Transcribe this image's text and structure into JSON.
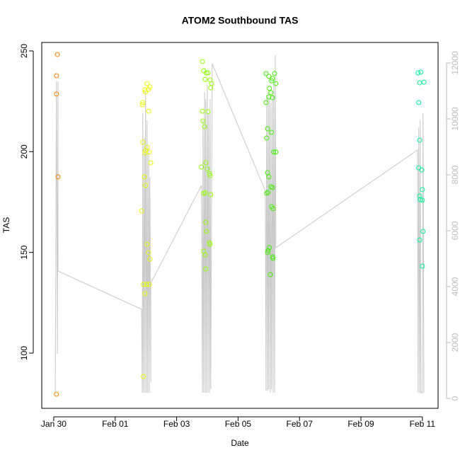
{
  "chart_data": {
    "type": "scatter",
    "title": "ATOM2 Southbound TAS",
    "x_label": "Date",
    "y_label": "TAS",
    "xlim": [
      -0.39,
      12.51
    ],
    "ylim": [
      72.6,
      254.2
    ],
    "y2lim": [
      -354,
      12734
    ],
    "xticks": [
      {
        "value": 0,
        "label": "Jan 30"
      },
      {
        "value": 2,
        "label": "Feb 01"
      },
      {
        "value": 4,
        "label": "Feb 03"
      },
      {
        "value": 6,
        "label": "Feb 05"
      },
      {
        "value": 8,
        "label": "Feb 07"
      },
      {
        "value": 10,
        "label": "Feb 09"
      },
      {
        "value": 12,
        "label": "Feb 11"
      }
    ],
    "yticks": [
      100,
      150,
      200,
      250
    ],
    "y2ticks": [
      0,
      2000,
      4000,
      6000,
      8000,
      10000,
      12000
    ],
    "y2_color": "#bbbbbb",
    "series": [
      {
        "type": "line",
        "axis": "y2",
        "color": "#c8c8c8",
        "x": [
          0.05,
          0.09,
          0.12,
          0.14,
          0.14,
          2.86,
          2.88,
          2.9,
          2.92,
          2.95,
          2.97,
          2.99,
          3.02,
          3.04,
          3.06,
          3.09,
          3.11,
          3.13,
          3.16,
          3.16,
          4.81,
          4.84,
          4.86,
          4.88,
          4.91,
          4.93,
          4.95,
          4.97,
          5.0,
          5.02,
          5.04,
          5.07,
          5.09,
          5.11,
          5.16,
          6.89,
          6.91,
          6.93,
          6.96,
          6.98,
          7.0,
          7.02,
          7.05,
          7.07,
          7.09,
          7.12,
          7.14,
          7.16,
          7.19,
          7.21,
          7.23,
          11.84,
          11.86,
          11.88,
          11.91,
          11.93,
          11.95,
          12.0,
          12.02,
          12.05
        ],
        "values": [
          203,
          11342,
          1595,
          11342,
          4557,
          3190,
          203,
          10200,
          203,
          9316,
          203,
          10962,
          203,
          9949,
          203,
          8937,
          203,
          7924,
          582,
          4127,
          7620,
          203,
          9949,
          203,
          10962,
          203,
          10709,
          203,
          11215,
          203,
          10203,
          203,
          10709,
          329,
          11975,
          7418,
          278,
          10835,
          278,
          10962,
          329,
          10709,
          203,
          10582,
          329,
          10835,
          203,
          11215,
          203,
          12278,
          5392,
          8886,
          203,
          9696,
          203,
          9949,
          203,
          203,
          10203,
          203
        ]
      },
      {
        "type": "scatter",
        "color": "#ff8000",
        "x": [
          0.12,
          0.09,
          0.09,
          0.14,
          0.09
        ],
        "values": [
          248.2,
          237.7,
          228.6,
          187.5,
          79.6
        ]
      },
      {
        "type": "scatter",
        "color": "#e8ff00",
        "x": [
          2.88,
          2.9,
          2.97,
          3.04,
          3.09,
          3.13,
          2.99,
          3.09,
          2.9,
          2.99,
          3.11,
          3.04,
          3.16,
          2.97,
          2.95,
          2.99,
          2.86,
          3.04,
          3.09,
          3.13,
          2.92,
          3.02,
          3.11,
          2.97,
          2.92
        ],
        "values": [
          223.3,
          224.4,
          230.7,
          233.8,
          231.0,
          232.1,
          229.6,
          220.1,
          204.7,
          200.5,
          199.8,
          202.2,
          194.5,
          199.4,
          187.5,
          183.3,
          170.6,
          154.1,
          149.9,
          146.7,
          134.1,
          134.1,
          134.1,
          129.5,
          88.4
        ]
      },
      {
        "type": "scatter",
        "color": "#90ff00",
        "x": [
          4.84,
          4.88,
          4.97,
          5.02,
          4.93,
          5.09,
          5.14,
          5.11,
          4.84,
          5.02,
          4.86,
          4.91,
          4.81,
          4.95,
          5.0,
          4.93,
          4.88,
          5.07,
          5.09,
          5.11,
          4.95,
          4.97,
          4.88,
          4.93,
          5.07,
          5.09,
          4.95
        ],
        "values": [
          244.7,
          240.2,
          239.1,
          239.1,
          235.9,
          235.6,
          233.8,
          231.7,
          220.1,
          219.8,
          215.2,
          212.4,
          192.4,
          194.5,
          191.4,
          179.6,
          179.3,
          189.1,
          188.1,
          178.7,
          165.0,
          160.4,
          150.6,
          148.8,
          154.8,
          154.1,
          141.8
        ]
      },
      {
        "type": "scatter",
        "color": "#40f000",
        "x": [
          6.91,
          7.0,
          7.12,
          7.19,
          7.09,
          7.23,
          7.02,
          7.07,
          7.0,
          7.12,
          6.91,
          6.96,
          7.09,
          6.93,
          7.16,
          7.23,
          6.96,
          7.0,
          7.07,
          6.98,
          7.12,
          6.93,
          7.09,
          7.14,
          6.98,
          6.96,
          7.02,
          7.12,
          7.14,
          7.05
        ],
        "values": [
          238.8,
          237.4,
          236.3,
          238.8,
          235.2,
          233.8,
          231.4,
          229.3,
          227.2,
          226.8,
          224.4,
          211.4,
          209.6,
          206.8,
          199.8,
          199.8,
          189.6,
          187.5,
          182.6,
          179.8,
          182.2,
          179.4,
          172.7,
          171.7,
          150.9,
          149.9,
          152.4,
          147.8,
          147.1,
          139.0
        ]
      },
      {
        "type": "scatter",
        "color": "#00f59a",
        "x": [
          11.86,
          11.95,
          11.91,
          12.05,
          11.88,
          11.91,
          11.88,
          11.98,
          12.0,
          11.91,
          11.93,
          12.0,
          12.02,
          11.91,
          12.0
        ],
        "values": [
          239.1,
          239.5,
          234.2,
          234.5,
          224.4,
          205.7,
          192.0,
          190.9,
          181.2,
          178.0,
          176.2,
          175.9,
          160.4,
          156.2,
          143.2
        ]
      }
    ]
  }
}
